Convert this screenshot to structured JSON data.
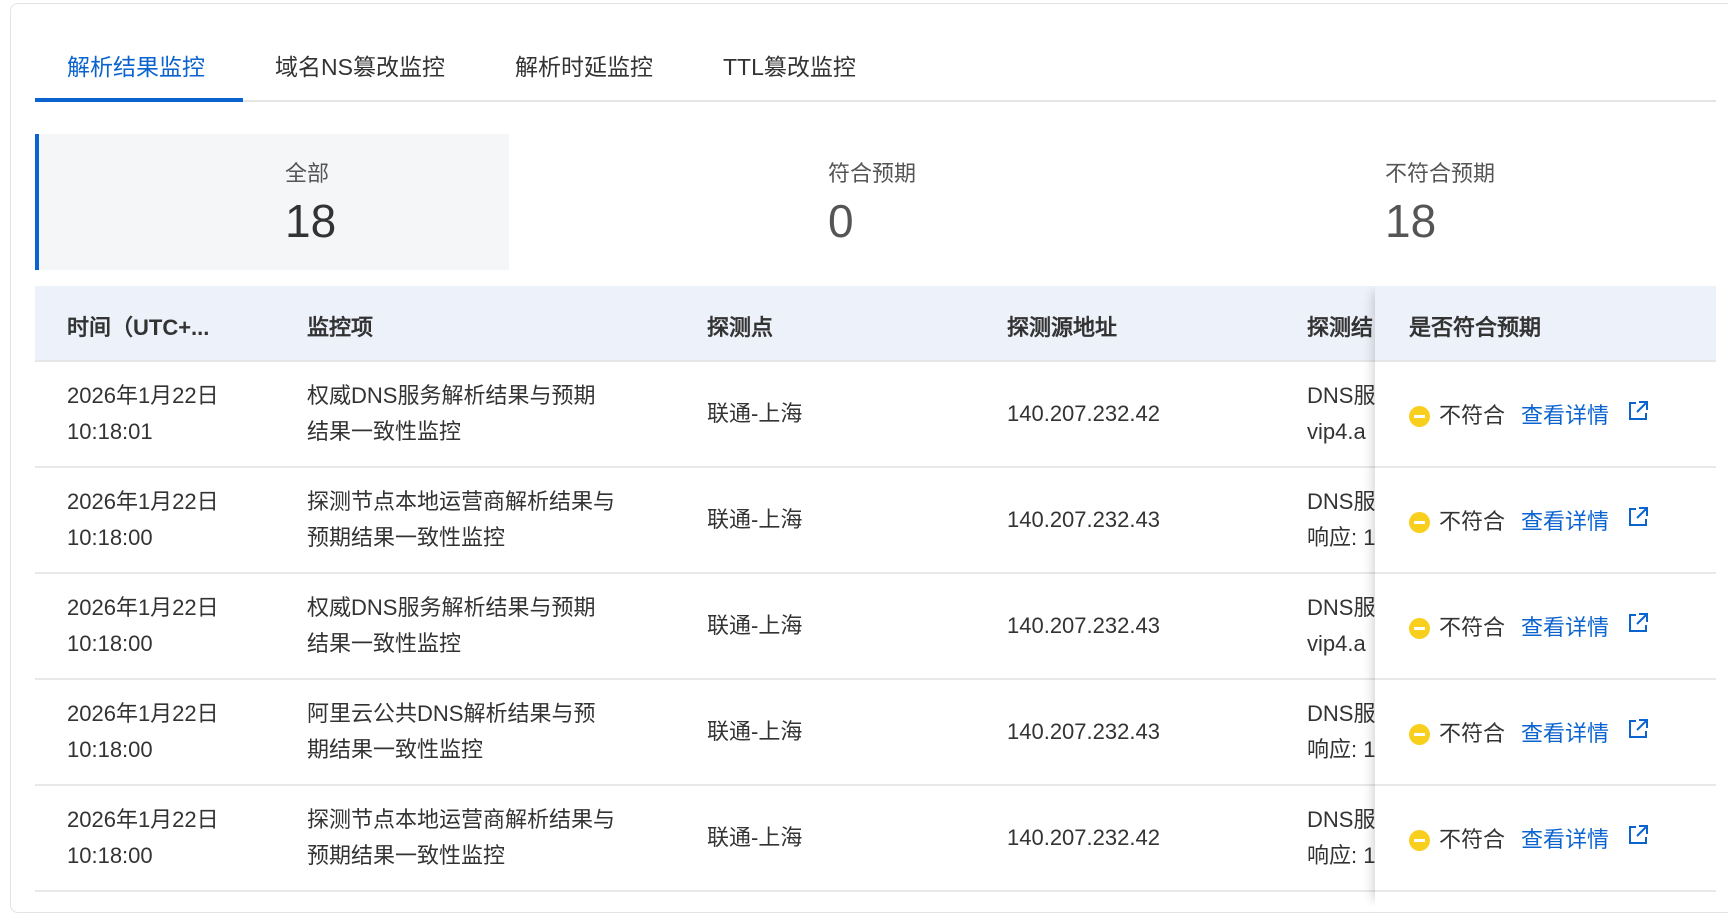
{
  "tabs": [
    {
      "label": "解析结果监控",
      "active": true
    },
    {
      "label": "域名NS篡改监控"
    },
    {
      "label": "解析时延监控"
    },
    {
      "label": "TTL篡改监控"
    }
  ],
  "stats": [
    {
      "label": "全部",
      "value": "18"
    },
    {
      "label": "符合预期",
      "value": "0"
    },
    {
      "label": "不符合预期",
      "value": "18"
    }
  ],
  "table": {
    "headers": [
      "时间（UTC+...",
      "监控项",
      "探测点",
      "探测源地址",
      "探测结",
      "是否符合预期"
    ],
    "rows": [
      {
        "time": [
          "2026年1月22日",
          "10:18:01"
        ],
        "item": [
          "权威DNS服务解析结果与预期",
          "结果一致性监控"
        ],
        "point": "联通-上海",
        "addr": "140.207.232.42",
        "result": [
          "DNS服",
          "vip4.a"
        ],
        "status": "不符合",
        "link": "查看详情"
      },
      {
        "time": [
          "2026年1月22日",
          "10:18:00"
        ],
        "item": [
          "探测节点本地运营商解析结果与",
          "预期结果一致性监控"
        ],
        "point": "联通-上海",
        "addr": "140.207.232.43",
        "result": [
          "DNS服",
          "响应: 1"
        ],
        "status": "不符合",
        "link": "查看详情"
      },
      {
        "time": [
          "2026年1月22日",
          "10:18:00"
        ],
        "item": [
          "权威DNS服务解析结果与预期",
          "结果一致性监控"
        ],
        "point": "联通-上海",
        "addr": "140.207.232.43",
        "result": [
          "DNS服",
          "vip4.a"
        ],
        "status": "不符合",
        "link": "查看详情"
      },
      {
        "time": [
          "2026年1月22日",
          "10:18:00"
        ],
        "item": [
          "阿里云公共DNS解析结果与预",
          "期结果一致性监控"
        ],
        "point": "联通-上海",
        "addr": "140.207.232.43",
        "result": [
          "DNS服",
          "响应: 1"
        ],
        "status": "不符合",
        "link": "查看详情"
      },
      {
        "time": [
          "2026年1月22日",
          "10:18:00"
        ],
        "item": [
          "探测节点本地运营商解析结果与",
          "预期结果一致性监控"
        ],
        "point": "联通-上海",
        "addr": "140.207.232.42",
        "result": [
          "DNS服",
          "响应: 1"
        ],
        "status": "不符合",
        "link": "查看详情"
      }
    ]
  },
  "colors": {
    "accent": "#0b63d0",
    "warning": "#f8cf1c",
    "header_bg": "#edf1f9"
  }
}
